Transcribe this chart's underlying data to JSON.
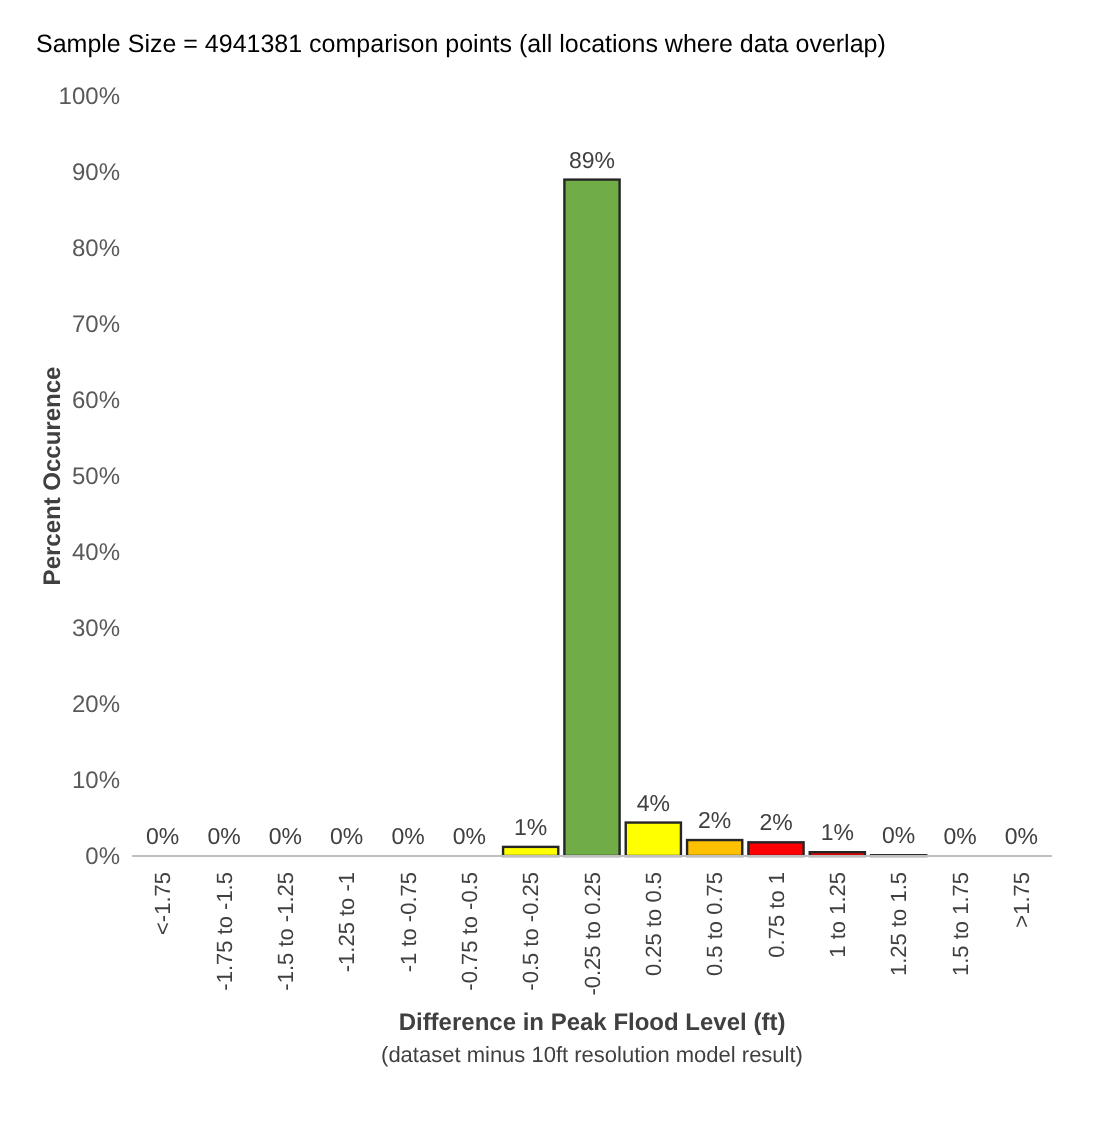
{
  "chart_data": {
    "type": "bar",
    "title": "Sample Size = 4941381 comparison points (all locations where data overlap)",
    "xlabel": "Difference in Peak Flood Level (ft)",
    "ylabel": "Percent Occurence",
    "annotations": [
      "(dataset minus 10ft resolution model result)"
    ],
    "categories": [
      "<-1.75",
      "-1.75 to -1.5",
      "-1.5 to -1.25",
      "-1.25 to -1",
      "-1 to -0.75",
      "-0.75 to -0.5",
      "-0.5 to -0.25",
      "-0.25 to 0.25",
      "0.25 to 0.5",
      "0.5 to 0.75",
      "0.75 to 1",
      "1 to 1.25",
      "1.25 to 1.5",
      "1.5 to 1.75",
      ">1.75"
    ],
    "values": [
      0,
      0,
      0,
      0,
      0,
      0,
      1.2,
      89,
      4.4,
      2.1,
      1.8,
      0.5,
      0.1,
      0,
      0
    ],
    "value_labels": [
      "0%",
      "0%",
      "0%",
      "0%",
      "0%",
      "0%",
      "1%",
      "89%",
      "4%",
      "2%",
      "2%",
      "1%",
      "0%",
      "0%",
      "0%"
    ],
    "colors": [
      "#ffff00",
      "#ffff00",
      "#ffff00",
      "#ffff00",
      "#ffff00",
      "#ffff00",
      "#ffff00",
      "#70ad47",
      "#ffff00",
      "#ffc000",
      "#ff0000",
      "#ff0000",
      "#7f7f7f",
      "#ffff00",
      "#ffff00"
    ],
    "ylim": [
      0,
      100
    ],
    "yticks": [
      {
        "value": 0,
        "label": "0%"
      },
      {
        "value": 10,
        "label": "10%"
      },
      {
        "value": 20,
        "label": "20%"
      },
      {
        "value": 30,
        "label": "30%"
      },
      {
        "value": 40,
        "label": "40%"
      },
      {
        "value": 50,
        "label": "50%"
      },
      {
        "value": 60,
        "label": "60%"
      },
      {
        "value": 70,
        "label": "70%"
      },
      {
        "value": 80,
        "label": "80%"
      },
      {
        "value": 90,
        "label": "90%"
      },
      {
        "value": 100,
        "label": "100%"
      }
    ],
    "grid": false
  }
}
